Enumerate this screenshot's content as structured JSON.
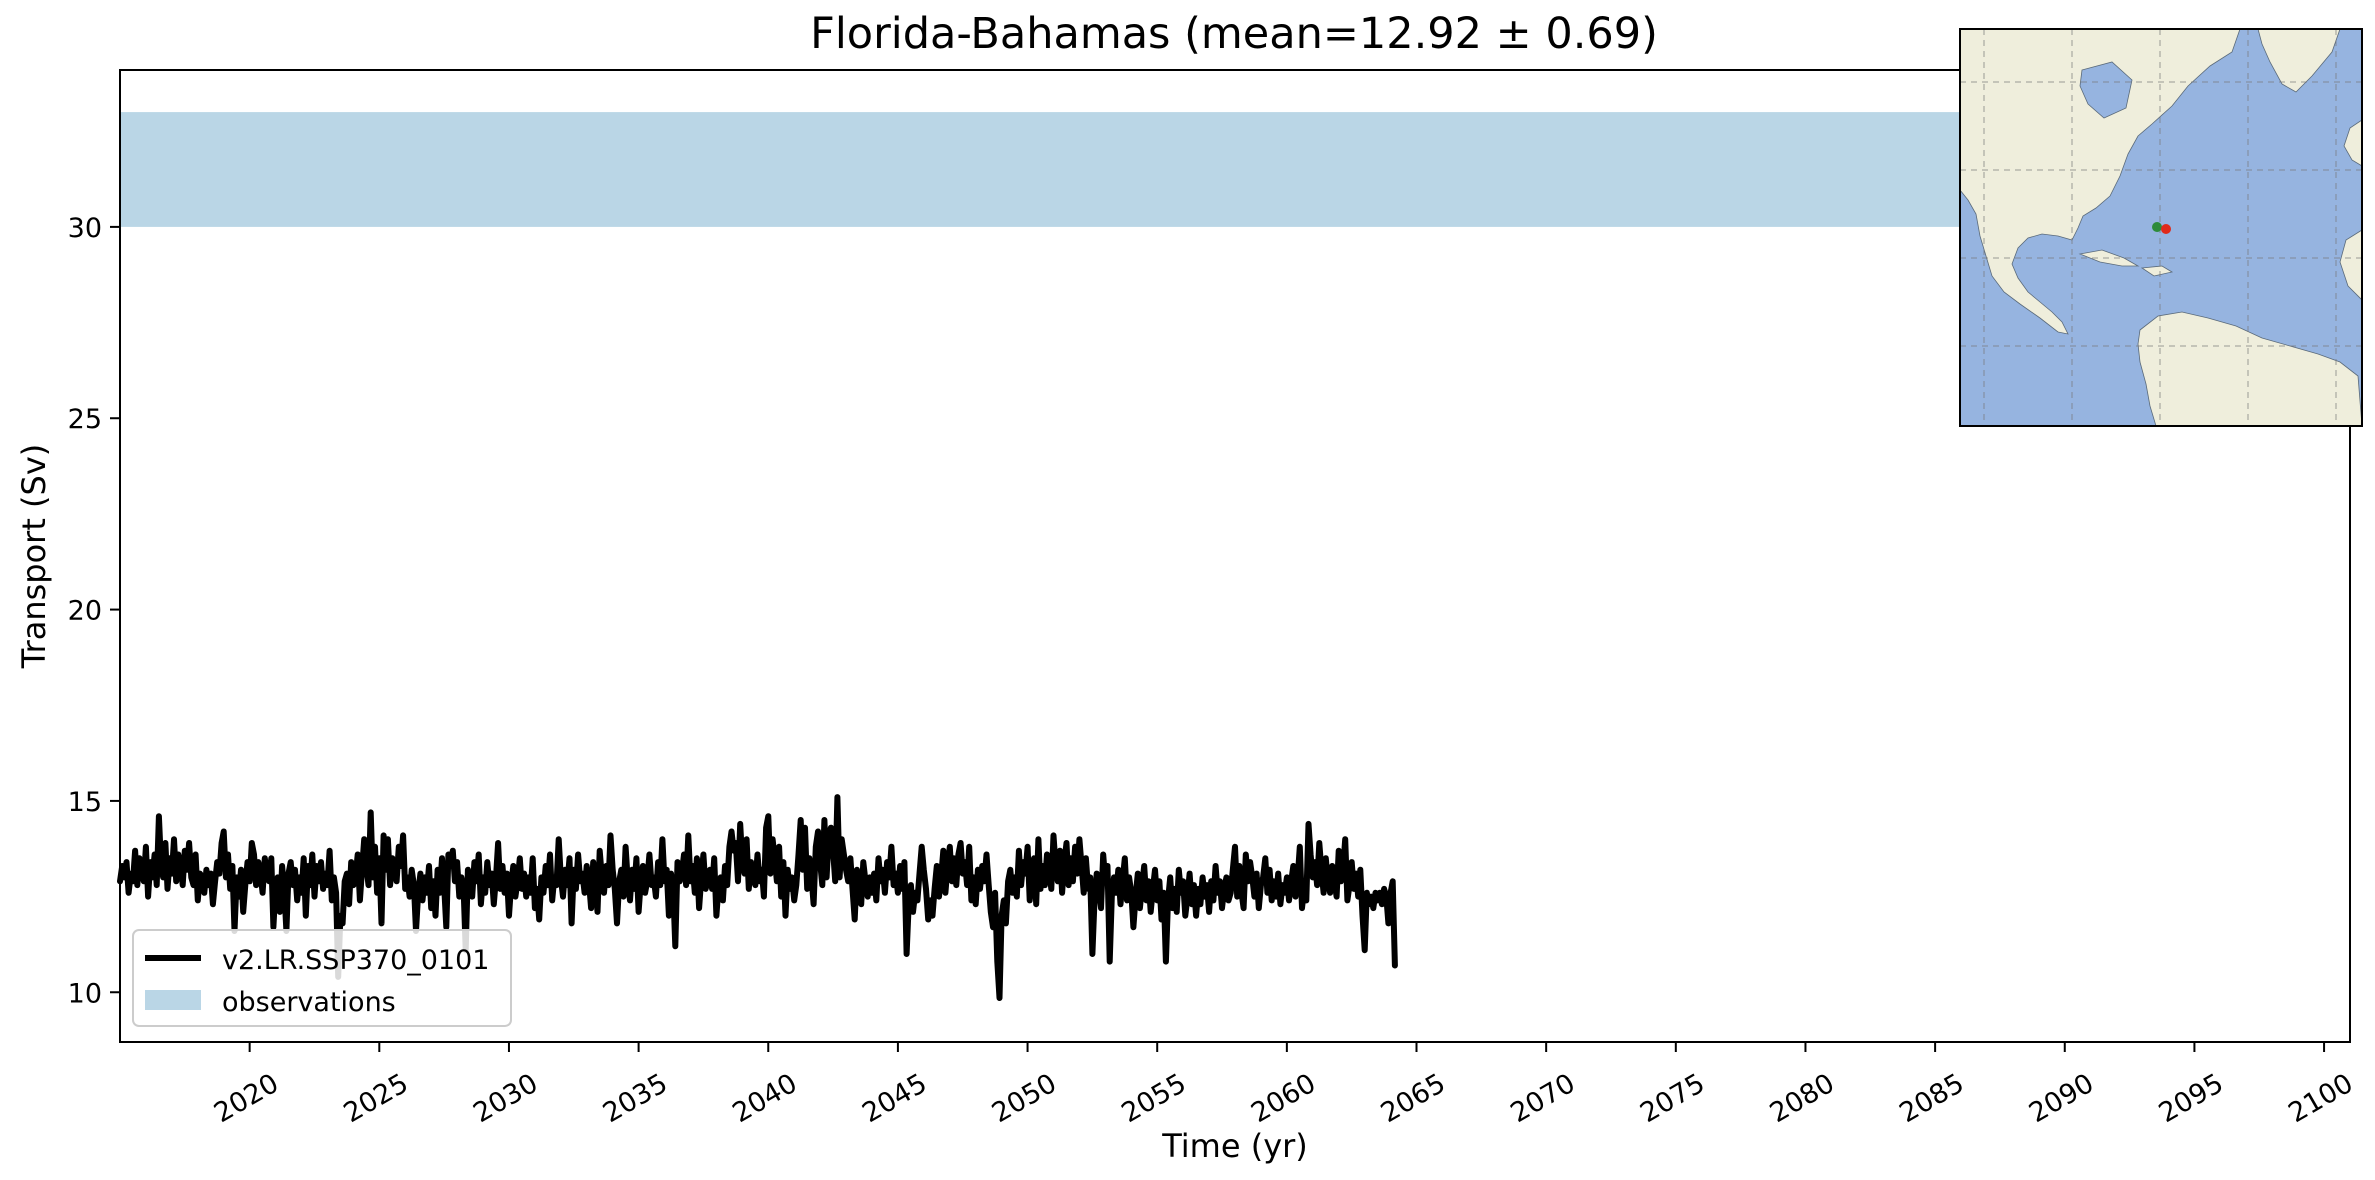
{
  "chart_data": {
    "type": "line",
    "title": "Florida-Bahamas (mean=12.92 ± 0.69)",
    "xlabel": "Time (yr)",
    "ylabel": "Transport (Sv)",
    "xlim": [
      2015,
      2101
    ],
    "ylim": [
      8.7,
      34.1
    ],
    "xticks": [
      2020,
      2025,
      2030,
      2035,
      2040,
      2045,
      2050,
      2055,
      2060,
      2065,
      2070,
      2075,
      2080,
      2085,
      2090,
      2095,
      2100
    ],
    "yticks": [
      10,
      15,
      20,
      25,
      30
    ],
    "grid": false,
    "legend_position": "lower-left",
    "series": [
      {
        "name": "v2.LR.SSP370_0101",
        "color": "#000000",
        "kind": "line",
        "start": "2015-01",
        "step": "monthly",
        "values": [
          12.9,
          13.3,
          13.0,
          13.4,
          12.6,
          13.1,
          12.9,
          13.7,
          12.8,
          13.5,
          13.2,
          12.9,
          13.8,
          12.5,
          13.4,
          13.0,
          13.6,
          12.8,
          14.6,
          13.3,
          13.0,
          13.9,
          12.7,
          13.5,
          13.1,
          14.0,
          12.9,
          13.6,
          13.3,
          12.8,
          13.7,
          13.2,
          13.9,
          13.0,
          12.8,
          13.6,
          12.4,
          13.1,
          13.0,
          12.6,
          13.2,
          12.8,
          13.1,
          12.3,
          12.9,
          13.4,
          13.1,
          13.9,
          14.2,
          13.0,
          13.6,
          12.7,
          13.3,
          11.6,
          13.0,
          12.5,
          13.2,
          12.1,
          12.8,
          13.4,
          12.9,
          13.9,
          13.6,
          12.8,
          13.4,
          13.1,
          12.6,
          13.5,
          13.1,
          12.9,
          13.5,
          11.7,
          12.8,
          13.0,
          12.1,
          13.3,
          12.7,
          11.6,
          13.1,
          13.4,
          12.8,
          13.2,
          12.4,
          13.0,
          12.6,
          13.5,
          12.0,
          13.3,
          12.8,
          13.6,
          12.5,
          13.3,
          12.9,
          13.4,
          12.7,
          13.1,
          12.8,
          13.7,
          12.4,
          13.0,
          12.6,
          10.4,
          12.0,
          11.8,
          12.9,
          13.1,
          12.3,
          13.4,
          12.8,
          13.0,
          13.6,
          12.4,
          13.2,
          14.0,
          13.3,
          12.8,
          14.7,
          13.0,
          13.8,
          12.6,
          13.5,
          11.8,
          14.1,
          13.2,
          14.0,
          12.8,
          13.5,
          13.2,
          12.9,
          13.8,
          13.3,
          14.1,
          12.7,
          13.0,
          12.5,
          13.2,
          12.8,
          11.6,
          12.6,
          13.1,
          12.4,
          13.0,
          12.6,
          13.3,
          12.2,
          12.9,
          12.0,
          13.2,
          12.6,
          13.5,
          12.8,
          11.7,
          13.6,
          13.3,
          13.7,
          12.9,
          13.4,
          12.5,
          13.0,
          12.7,
          11.1,
          13.2,
          12.8,
          12.5,
          13.4,
          12.9,
          13.6,
          12.3,
          13.0,
          12.6,
          13.4,
          12.8,
          13.1,
          12.3,
          13.0,
          13.9,
          12.7,
          13.3,
          12.6,
          13.1,
          12.0,
          12.8,
          13.3,
          12.5,
          12.9,
          13.5,
          12.7,
          13.1,
          12.5,
          13.0,
          12.6,
          13.5,
          12.2,
          12.7,
          11.9,
          13.0,
          12.6,
          13.3,
          12.8,
          13.6,
          12.4,
          13.0,
          12.8,
          14.0,
          13.0,
          12.5,
          13.2,
          12.8,
          13.5,
          11.8,
          13.2,
          12.7,
          13.6,
          12.9,
          13.1,
          12.6,
          13.3,
          12.9,
          12.2,
          13.4,
          12.8,
          12.1,
          13.7,
          13.0,
          12.6,
          13.3,
          12.8,
          14.1,
          13.2,
          12.7,
          11.8,
          12.9,
          13.2,
          12.5,
          13.8,
          12.9,
          12.4,
          13.2,
          12.7,
          13.5,
          12.1,
          12.9,
          13.3,
          12.6,
          12.9,
          13.6,
          12.8,
          13.0,
          12.5,
          13.4,
          12.8,
          14.0,
          12.9,
          13.2,
          12.0,
          13.1,
          12.7,
          11.2,
          13.4,
          12.9,
          13.1,
          13.6,
          12.8,
          14.1,
          12.9,
          13.3,
          12.6,
          13.5,
          12.2,
          13.0,
          13.6,
          12.7,
          12.9,
          13.2,
          12.7,
          13.5,
          12.0,
          12.8,
          13.0,
          12.4,
          13.3,
          12.8,
          13.8,
          14.2,
          13.7,
          13.9,
          12.9,
          14.4,
          13.4,
          13.1,
          14.0,
          12.7,
          13.4,
          13.0,
          12.8,
          13.6,
          12.9,
          13.2,
          12.5,
          14.3,
          14.6,
          13.1,
          14.0,
          13.5,
          12.9,
          13.8,
          12.5,
          13.4,
          12.0,
          13.2,
          12.7,
          13.0,
          12.4,
          12.8,
          13.6,
          14.5,
          13.2,
          14.3,
          12.7,
          13.5,
          13.0,
          12.3,
          13.8,
          14.2,
          13.4,
          12.8,
          14.5,
          13.0,
          14.1,
          14.3,
          13.7,
          12.9,
          15.1,
          13.0,
          14.0,
          13.6,
          13.2,
          12.9,
          13.5,
          12.7,
          11.9,
          13.2,
          12.8,
          12.3,
          13.4,
          12.9,
          12.5,
          13.0,
          12.6,
          13.1,
          12.4,
          13.5,
          12.9,
          13.2,
          12.6,
          13.4,
          13.0,
          13.8,
          12.8,
          13.1,
          12.6,
          13.3,
          12.7,
          13.4,
          11.0,
          12.3,
          12.8,
          12.1,
          12.6,
          12.4,
          13.1,
          13.8,
          13.2,
          12.7,
          11.9,
          12.4,
          12.0,
          12.7,
          13.3,
          12.5,
          13.0,
          13.7,
          12.6,
          13.3,
          13.8,
          12.9,
          13.5,
          12.8,
          13.6,
          13.9,
          13.1,
          13.4,
          12.8,
          13.8,
          12.4,
          13.0,
          12.3,
          13.2,
          12.7,
          13.3,
          12.9,
          13.6,
          12.8,
          12.1,
          11.7,
          12.6,
          10.8,
          9.85,
          12.0,
          12.4,
          11.8,
          12.9,
          13.2,
          12.6,
          13.0,
          12.5,
          13.7,
          12.8,
          13.4,
          13.1,
          13.8,
          12.4,
          13.0,
          13.5,
          12.3,
          14.0,
          12.7,
          13.3,
          12.8,
          13.6,
          13.2,
          12.7,
          14.1,
          13.3,
          12.9,
          13.7,
          12.6,
          13.4,
          13.9,
          12.8,
          13.5,
          12.9,
          13.8,
          13.1,
          14.0,
          13.3,
          12.6,
          13.5,
          12.7,
          13.0,
          11.0,
          12.4,
          13.1,
          12.7,
          12.2,
          13.6,
          12.9,
          13.3,
          10.8,
          12.5,
          13.0,
          12.6,
          13.2,
          12.3,
          12.9,
          13.5,
          12.4,
          13.0,
          12.6,
          11.7,
          12.5,
          13.1,
          12.2,
          12.8,
          13.3,
          12.4,
          12.9,
          12.1,
          12.7,
          13.2,
          12.4,
          12.9,
          11.9,
          12.6,
          10.8,
          12.4,
          13.0,
          12.2,
          12.7,
          12.1,
          13.2,
          12.6,
          12.9,
          12.0,
          12.5,
          13.1,
          12.3,
          12.8,
          12.0,
          12.7,
          12.3,
          13.0,
          12.5,
          12.8,
          12.1,
          12.9,
          12.4,
          13.3,
          12.6,
          12.9,
          12.2,
          12.7,
          13.0,
          12.4,
          12.6,
          13.2,
          13.8,
          12.5,
          13.3,
          12.6,
          12.2,
          13.6,
          12.9,
          13.4,
          13.0,
          12.5,
          13.1,
          12.2,
          12.8,
          13.0,
          13.5,
          12.6,
          13.2,
          12.4,
          12.9,
          12.5,
          13.1,
          12.3,
          12.8,
          12.6,
          13.0,
          12.4,
          12.9,
          13.3,
          12.5,
          13.0,
          13.8,
          12.2,
          12.7,
          12.4,
          14.4,
          13.6,
          13.0,
          13.4,
          12.8,
          13.9,
          13.2,
          12.6,
          13.5,
          12.9,
          12.6,
          13.3,
          12.9,
          12.5,
          13.7,
          12.9,
          13.2,
          14.0,
          12.4,
          12.8,
          13.4,
          12.7,
          13.1,
          12.5,
          13.2,
          12.0,
          11.1,
          12.6,
          12.3,
          12.5,
          12.2,
          12.6,
          12.4,
          12.6,
          12.3,
          12.7,
          12.5,
          11.8,
          12.6,
          12.9,
          10.7
        ]
      },
      {
        "name": "observations",
        "color": "#bad6e6",
        "kind": "band",
        "y_range": [
          30.0,
          33.0
        ]
      }
    ],
    "inset_map": {
      "region": "North & South America / Atlantic",
      "land_color": "#efeedc",
      "ocean_color": "#96b4e0",
      "markers": [
        {
          "name": "Florida",
          "color": "#2e8b3a"
        },
        {
          "name": "Bahamas",
          "color": "#e02a1a"
        }
      ]
    }
  }
}
